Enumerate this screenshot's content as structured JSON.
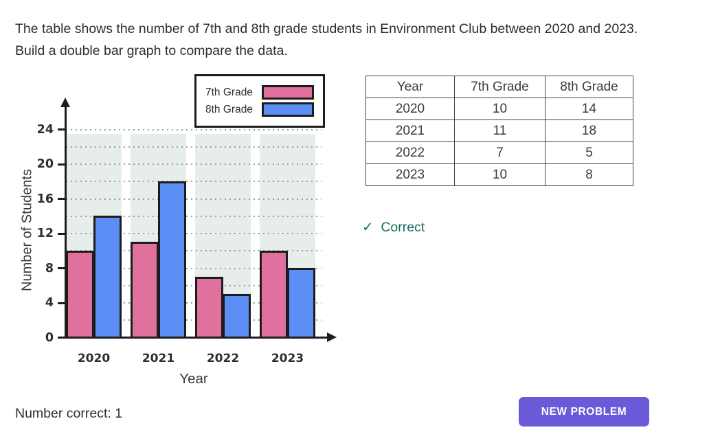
{
  "instruction": "The table shows the number of 7th and 8th grade students in Environment Club between 2020 and 2023. Build a double bar graph to compare the data.",
  "chart_data": {
    "type": "bar",
    "title": "",
    "categories": [
      "2020",
      "2021",
      "2022",
      "2023"
    ],
    "series": [
      {
        "name": "7th Grade",
        "color": "#e0709e",
        "values": [
          10,
          11,
          7,
          10
        ]
      },
      {
        "name": "8th Grade",
        "color": "#5b8ff5",
        "values": [
          14,
          18,
          5,
          8
        ]
      }
    ],
    "xlabel": "Year",
    "ylabel": "Number of Students",
    "ylim": [
      0,
      24
    ],
    "ytick_step": 4,
    "grid_step": 2,
    "grid": "dotted",
    "legend_position": "top-right",
    "band_color": "#e7edea",
    "bar_border_color": "#1c1c1c",
    "axis_color": "#1d1d1d"
  },
  "table": {
    "headers": [
      "Year",
      "7th Grade",
      "8th Grade"
    ],
    "rows": [
      [
        "2020",
        "10",
        "14"
      ],
      [
        "2021",
        "11",
        "18"
      ],
      [
        "2022",
        "7",
        "5"
      ],
      [
        "2023",
        "10",
        "8"
      ]
    ]
  },
  "feedback": {
    "check": "✓",
    "label": "Correct",
    "color": "#186a5e"
  },
  "score": {
    "label": "Number correct:",
    "value": "1"
  },
  "actions": {
    "new_problem": "NEW PROBLEM"
  },
  "colors": {
    "accent_button": "#6a5ad8",
    "correct_green": "#186a5e",
    "bar_pink": "#e0709e",
    "bar_blue": "#5b8ff5",
    "band_bg": "#e7edea"
  }
}
